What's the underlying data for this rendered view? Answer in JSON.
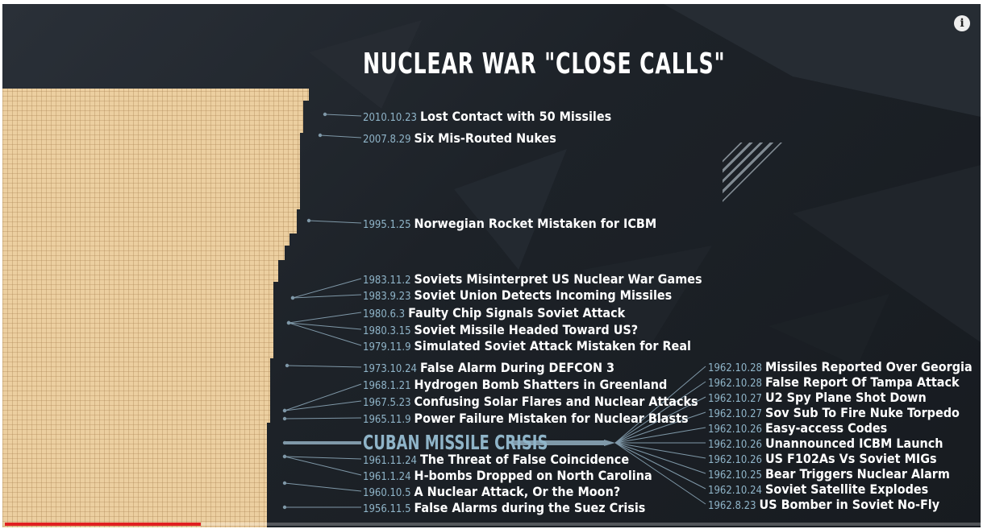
{
  "title": "NUCLEAR WAR \"CLOSE CALLS\"",
  "info_button": "i",
  "cuban_heading": "CUBAN MISSILE CRISIS",
  "left_events": [
    {
      "date": "2010.10.23",
      "label": "Lost Contact with 50 Missiles"
    },
    {
      "date": "2007.8.29",
      "label": "Six Mis-Routed Nukes"
    },
    {
      "date": "1995.1.25",
      "label": "Norwegian Rocket Mistaken for ICBM"
    },
    {
      "date": "1983.11.2",
      "label": "Soviets Misinterpret US Nuclear War Games"
    },
    {
      "date": "1983.9.23",
      "label": "Soviet Union Detects Incoming Missiles"
    },
    {
      "date": "1980.6.3",
      "label": "Faulty Chip Signals Soviet Attack"
    },
    {
      "date": "1980.3.15",
      "label": "Soviet Missile Headed Toward US?"
    },
    {
      "date": "1979.11.9",
      "label": "Simulated Soviet Attack Mistaken for Real"
    },
    {
      "date": "1973.10.24",
      "label": "False Alarm During DEFCON 3"
    },
    {
      "date": "1968.1.21",
      "label": "Hydrogen Bomb Shatters in Greenland"
    },
    {
      "date": "1967.5.23",
      "label": "Confusing Solar Flares and Nuclear Attacks"
    },
    {
      "date": "1965.11.9",
      "label": "Power Failure Mistaken for Nuclear Blasts"
    },
    {
      "date": "1961.11.24",
      "label": "The Threat of False Coincidence"
    },
    {
      "date": "1961.1.24",
      "label": "H-bombs Dropped on North Carolina"
    },
    {
      "date": "1960.10.5",
      "label": "A Nuclear Attack, Or the Moon?"
    },
    {
      "date": "1956.11.5",
      "label": "False Alarms during the Suez Crisis"
    }
  ],
  "cuban_events": [
    {
      "date": "1962.10.28",
      "label": "Missiles Reported Over Georgia"
    },
    {
      "date": "1962.10.28",
      "label": "False Report Of Tampa Attack"
    },
    {
      "date": "1962.10.27",
      "label": "U2 Spy Plane Shot Down"
    },
    {
      "date": "1962.10.27",
      "label": "Sov Sub To Fire Nuke Torpedo"
    },
    {
      "date": "1962.10.26",
      "label": "Easy-access Codes"
    },
    {
      "date": "1962.10.26",
      "label": "Unannounced ICBM Launch"
    },
    {
      "date": "1962.10.26",
      "label": "US F102As Vs Soviet MIGs"
    },
    {
      "date": "1962.10.25",
      "label": "Bear Triggers Nuclear Alarm"
    },
    {
      "date": "1962.10.24",
      "label": "Soviet Satellite Explodes"
    },
    {
      "date": "1962.8.23",
      "label": "US Bomber in Soviet No-Fly"
    }
  ],
  "video_progress_fraction": 0.2,
  "colors": {
    "grid_fill": "#eccfa0",
    "grid_line": "#b08a5a",
    "accent_text": "#8fb4c8",
    "progress": "#e02020"
  },
  "icons": [
    "info-icon"
  ]
}
